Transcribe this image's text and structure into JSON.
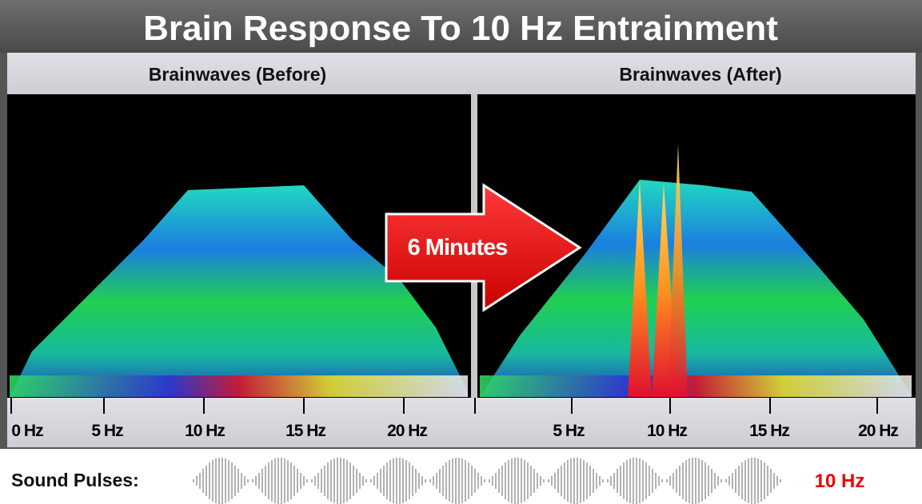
{
  "header": {
    "title": "Brain Response To 10 Hz Entrainment"
  },
  "panels": [
    {
      "label": "Brainwaves (Before)",
      "ticks": [
        "0 Hz",
        "5 Hz",
        "10 Hz",
        "15 Hz",
        "20 Hz"
      ]
    },
    {
      "label": "Brainwaves (After)",
      "ticks": [
        "5 Hz",
        "10 Hz",
        "15 Hz",
        "20 Hz"
      ]
    }
  ],
  "arrow": {
    "label": "6 Minutes"
  },
  "footer": {
    "label": "Sound Pulses:",
    "frequency": "10 Hz"
  }
}
